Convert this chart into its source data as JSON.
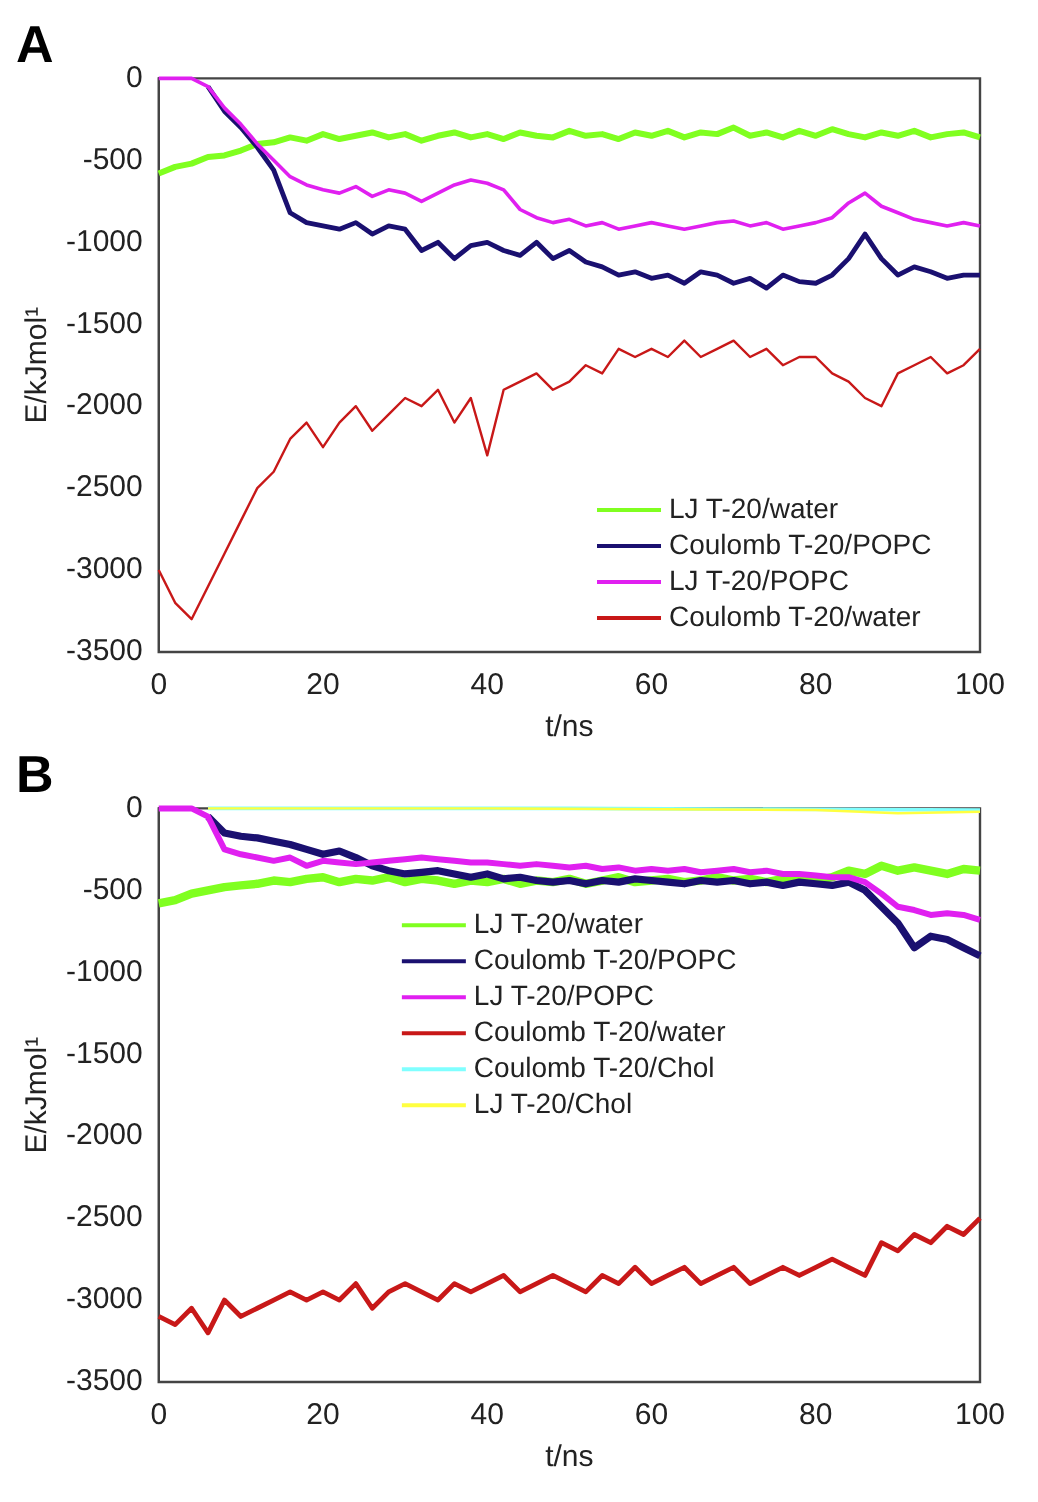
{
  "chart_data": [
    {
      "type": "line",
      "title": "A",
      "xlabel": "t/ns",
      "ylabel": "E/kJmol¹",
      "xlim": [
        0,
        100
      ],
      "xticks": [
        0,
        20,
        40,
        60,
        80,
        100
      ],
      "ylim": [
        -3500,
        0
      ],
      "yticks": [
        -3500,
        -3000,
        -2500,
        -2000,
        -1500,
        -1000,
        -500,
        0
      ],
      "grid": false,
      "legend": "bottom right",
      "marker": "none",
      "line_style": "solid",
      "x": [
        0,
        2,
        4,
        6,
        8,
        10,
        12,
        14,
        16,
        18,
        20,
        22,
        24,
        26,
        28,
        30,
        32,
        34,
        36,
        38,
        40,
        42,
        44,
        46,
        48,
        50,
        52,
        54,
        56,
        58,
        60,
        62,
        64,
        66,
        68,
        70,
        72,
        74,
        76,
        78,
        80,
        82,
        84,
        86,
        88,
        90,
        92,
        94,
        96,
        98,
        100
      ],
      "series": [
        {
          "name": "LJ T-20/water",
          "color": "#80ff20",
          "values": [
            -580,
            -540,
            -520,
            -480,
            -470,
            -440,
            -400,
            -390,
            -360,
            -380,
            -340,
            -370,
            -350,
            -330,
            -360,
            -340,
            -380,
            -350,
            -330,
            -360,
            -340,
            -370,
            -330,
            -350,
            -360,
            -320,
            -350,
            -340,
            -370,
            -330,
            -350,
            -320,
            -360,
            -330,
            -340,
            -300,
            -350,
            -330,
            -360,
            -320,
            -350,
            -310,
            -340,
            -360,
            -330,
            -350,
            -320,
            -360,
            -340,
            -330,
            -360
          ]
        },
        {
          "name": "Coulomb T-20/POPC",
          "color": "#1a1070",
          "values": [
            null,
            null,
            null,
            -50,
            -200,
            -300,
            -420,
            -560,
            -820,
            -880,
            -900,
            -920,
            -880,
            -950,
            -900,
            -920,
            -1050,
            -1000,
            -1100,
            -1020,
            -1000,
            -1050,
            -1080,
            -1000,
            -1100,
            -1050,
            -1120,
            -1150,
            -1200,
            -1180,
            -1220,
            -1200,
            -1250,
            -1180,
            -1200,
            -1250,
            -1220,
            -1280,
            -1200,
            -1240,
            -1250,
            -1200,
            -1100,
            -950,
            -1100,
            -1200,
            -1150,
            -1180,
            -1220,
            -1200,
            -1200
          ]
        },
        {
          "name": "LJ T-20/POPC",
          "color": "#e020f0",
          "values": [
            0,
            0,
            0,
            -50,
            -180,
            -280,
            -400,
            -500,
            -600,
            -650,
            -680,
            -700,
            -660,
            -720,
            -680,
            -700,
            -750,
            -700,
            -650,
            -620,
            -640,
            -680,
            -800,
            -850,
            -880,
            -860,
            -900,
            -880,
            -920,
            -900,
            -880,
            -900,
            -920,
            -900,
            -880,
            -870,
            -900,
            -880,
            -920,
            -900,
            -880,
            -850,
            -760,
            -700,
            -780,
            -820,
            -860,
            -880,
            -900,
            -880,
            -900
          ]
        },
        {
          "name": "Coulomb T-20/water",
          "color": "#c81818",
          "values": [
            -3000,
            -3200,
            -3300,
            -3100,
            -2900,
            -2700,
            -2500,
            -2400,
            -2200,
            -2100,
            -2250,
            -2100,
            -2000,
            -2150,
            -2050,
            -1950,
            -2000,
            -1900,
            -2100,
            -1950,
            -2300,
            -1900,
            -1850,
            -1800,
            -1900,
            -1850,
            -1750,
            -1800,
            -1650,
            -1700,
            -1650,
            -1700,
            -1600,
            -1700,
            -1650,
            -1600,
            -1700,
            -1650,
            -1750,
            -1700,
            -1700,
            -1800,
            -1850,
            -1950,
            -2000,
            -1800,
            -1750,
            -1700,
            -1800,
            -1750,
            -1650
          ]
        }
      ]
    },
    {
      "type": "line",
      "title": "B",
      "xlabel": "t/ns",
      "ylabel": "E/kJmol¹",
      "xlim": [
        0,
        100
      ],
      "xticks": [
        0,
        20,
        40,
        60,
        80,
        100
      ],
      "ylim": [
        -3500,
        0
      ],
      "yticks": [
        -3500,
        -3000,
        -2500,
        -2000,
        -1500,
        -1000,
        -500,
        0
      ],
      "grid": false,
      "legend": "center",
      "marker": "none",
      "line_style": "solid",
      "x": [
        0,
        2,
        4,
        6,
        8,
        10,
        12,
        14,
        16,
        18,
        20,
        22,
        24,
        26,
        28,
        30,
        32,
        34,
        36,
        38,
        40,
        42,
        44,
        46,
        48,
        50,
        52,
        54,
        56,
        58,
        60,
        62,
        64,
        66,
        68,
        70,
        72,
        74,
        76,
        78,
        80,
        82,
        84,
        86,
        88,
        90,
        92,
        94,
        96,
        98,
        100
      ],
      "series": [
        {
          "name": "LJ T-20/water",
          "color": "#80ff20",
          "values": [
            -580,
            -560,
            -520,
            -500,
            -480,
            -470,
            -460,
            -440,
            -450,
            -430,
            -420,
            -450,
            -430,
            -440,
            -420,
            -450,
            -430,
            -440,
            -460,
            -440,
            -450,
            -430,
            -460,
            -440,
            -450,
            -430,
            -460,
            -440,
            -420,
            -450,
            -440,
            -430,
            -450,
            -440,
            -420,
            -440,
            -430,
            -450,
            -430,
            -420,
            -440,
            -420,
            -380,
            -400,
            -350,
            -380,
            -360,
            -380,
            -400,
            -370,
            -380
          ]
        },
        {
          "name": "Coulomb T-20/POPC",
          "color": "#1a1070",
          "values": [
            null,
            null,
            null,
            -50,
            -150,
            -170,
            -180,
            -200,
            -220,
            -250,
            -280,
            -260,
            -300,
            -350,
            -380,
            -400,
            -390,
            -380,
            -400,
            -420,
            -400,
            -430,
            -420,
            -440,
            -450,
            -440,
            -460,
            -440,
            -450,
            -430,
            -440,
            -450,
            -460,
            -440,
            -450,
            -440,
            -460,
            -450,
            -470,
            -450,
            -460,
            -470,
            -450,
            -500,
            -600,
            -700,
            -850,
            -780,
            -800,
            -850,
            -900
          ]
        },
        {
          "name": "LJ T-20/POPC",
          "color": "#e020f0",
          "values": [
            0,
            0,
            0,
            -50,
            -250,
            -280,
            -300,
            -320,
            -300,
            -350,
            -320,
            -330,
            -340,
            -330,
            -320,
            -310,
            -300,
            -310,
            -320,
            -330,
            -330,
            -340,
            -350,
            -340,
            -350,
            -360,
            -350,
            -370,
            -360,
            -380,
            -370,
            -380,
            -370,
            -390,
            -380,
            -370,
            -390,
            -380,
            -400,
            -400,
            -410,
            -420,
            -420,
            -450,
            -520,
            -600,
            -620,
            -650,
            -640,
            -650,
            -680
          ]
        },
        {
          "name": "Coulomb T-20/water",
          "color": "#c81818",
          "values": [
            -3100,
            -3150,
            -3050,
            -3200,
            -3000,
            -3100,
            -3050,
            -3000,
            -2950,
            -3000,
            -2950,
            -3000,
            -2900,
            -3050,
            -2950,
            -2900,
            -2950,
            -3000,
            -2900,
            -2950,
            -2900,
            -2850,
            -2950,
            -2900,
            -2850,
            -2900,
            -2950,
            -2850,
            -2900,
            -2800,
            -2900,
            -2850,
            -2800,
            -2900,
            -2850,
            -2800,
            -2900,
            -2850,
            -2800,
            -2850,
            -2800,
            -2750,
            -2800,
            -2850,
            -2650,
            -2700,
            -2600,
            -2650,
            -2550,
            -2600,
            -2500
          ]
        },
        {
          "name": "Coulomb T-20/Chol",
          "color": "#80ffff",
          "x": [
            6,
            50,
            100
          ],
          "values": [
            0,
            0,
            -10
          ]
        },
        {
          "name": "LJ T-20/Chol",
          "color": "#ffff40",
          "x": [
            6,
            40,
            80,
            90,
            100
          ],
          "values": [
            0,
            0,
            -10,
            -30,
            -20
          ]
        }
      ]
    }
  ]
}
